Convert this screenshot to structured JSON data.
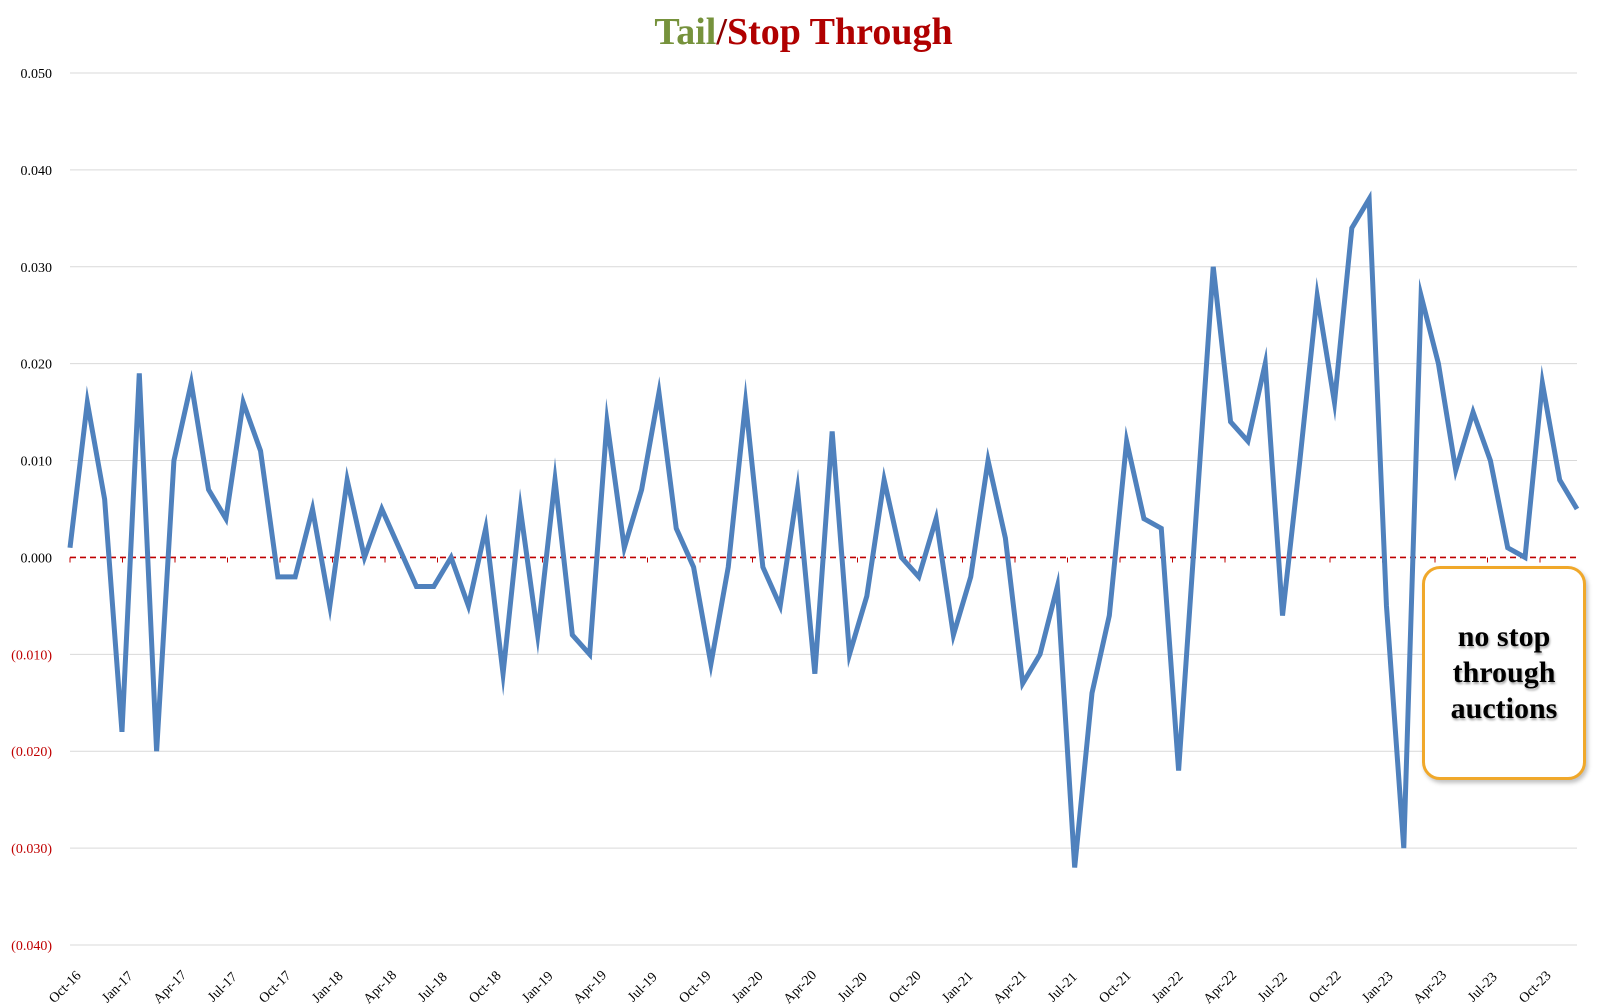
{
  "chart_data": {
    "type": "line",
    "title": {
      "tail": "Tail",
      "separator": "/",
      "stop_through": "Stop Through"
    },
    "title_colors": {
      "tail": "#76923c",
      "separator": "#8b0000",
      "stop_through": "#b00000"
    },
    "ylim": [
      -0.04,
      0.05
    ],
    "yticks": [
      {
        "value": 0.05,
        "label": "0.050"
      },
      {
        "value": 0.04,
        "label": "0.040"
      },
      {
        "value": 0.03,
        "label": "0.030"
      },
      {
        "value": 0.02,
        "label": "0.020"
      },
      {
        "value": 0.01,
        "label": "0.010"
      },
      {
        "value": 0.0,
        "label": "0.000"
      },
      {
        "value": -0.01,
        "label": "(0.010)"
      },
      {
        "value": -0.02,
        "label": "(0.020)"
      },
      {
        "value": -0.03,
        "label": "(0.030)"
      },
      {
        "value": -0.04,
        "label": "(0.040)"
      }
    ],
    "ytick_colors": {
      "positive": "#000000",
      "negative": "#c00000"
    },
    "x_tick_labels": [
      "Oct-16",
      "Jan-17",
      "Apr-17",
      "Jul-17",
      "Oct-17",
      "Jan-18",
      "Apr-18",
      "Jul-18",
      "Oct-18",
      "Jan-19",
      "Apr-19",
      "Jul-19",
      "Oct-19",
      "Jan-20",
      "Apr-20",
      "Jul-20",
      "Oct-20",
      "Jan-21",
      "Apr-21",
      "Jul-21",
      "Oct-21",
      "Jan-22",
      "Apr-22",
      "Jul-22",
      "Oct-22",
      "Jan-23",
      "Apr-23",
      "Jul-23",
      "Oct-23"
    ],
    "series": [
      {
        "color": "#4f81bd",
        "values": [
          0.001,
          0.016,
          0.006,
          -0.018,
          0.019,
          -0.02,
          0.01,
          0.018,
          0.007,
          0.004,
          0.016,
          0.011,
          -0.002,
          -0.002,
          0.005,
          -0.005,
          0.008,
          0.0,
          0.005,
          0.001,
          -0.003,
          -0.003,
          0.0,
          -0.005,
          0.003,
          -0.012,
          0.005,
          -0.008,
          0.008,
          -0.008,
          -0.01,
          0.014,
          0.001,
          0.007,
          0.017,
          0.003,
          -0.001,
          -0.011,
          -0.001,
          0.016,
          -0.001,
          -0.005,
          0.007,
          -0.012,
          0.013,
          -0.01,
          -0.004,
          0.008,
          0.0,
          -0.002,
          0.004,
          -0.008,
          -0.002,
          0.01,
          0.002,
          -0.013,
          -0.01,
          -0.003,
          -0.032,
          -0.014,
          -0.006,
          0.012,
          0.004,
          0.003,
          -0.022,
          0.004,
          0.03,
          0.014,
          0.012,
          0.02,
          -0.006,
          0.01,
          0.027,
          0.016,
          0.034,
          0.037,
          -0.005,
          -0.03,
          0.027,
          0.02,
          0.009,
          0.015,
          0.01,
          0.001,
          0.0,
          0.018,
          0.008,
          0.005
        ]
      }
    ],
    "reference_line": {
      "value": 0.0,
      "style": "dashed",
      "color": "#c00000"
    },
    "grid": true,
    "annotation": {
      "text": "no stop\nthrough\nauctions",
      "border_color": "#f0a82a"
    }
  }
}
